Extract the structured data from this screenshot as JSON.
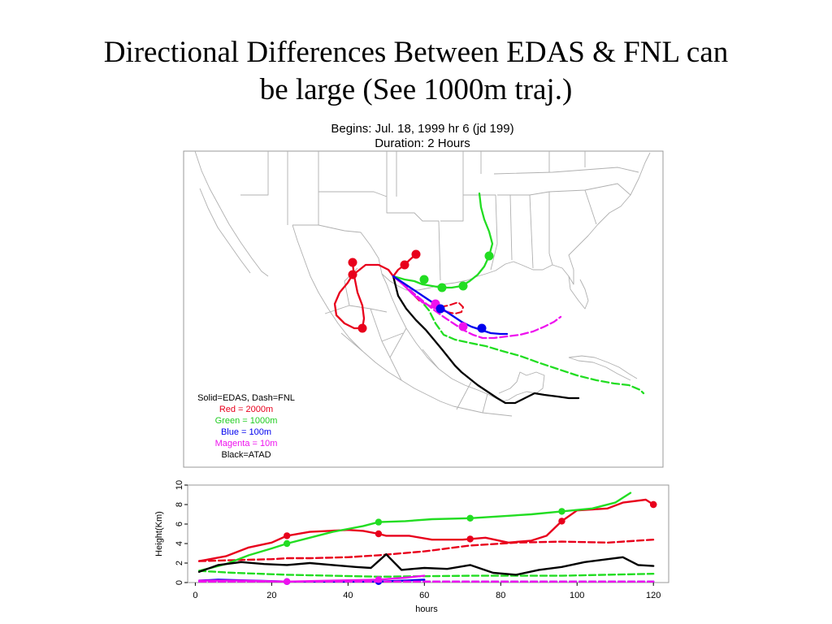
{
  "slide": {
    "title_line1": "Directional Differences Between EDAS & FNL can",
    "title_line2": "be large (See 1000m traj.)",
    "run_begins": "Begins:  Jul. 18, 1999 hr 6 (jd 199)",
    "run_duration": "Duration:  2 Hours"
  },
  "legend": {
    "style_note": "Solid=EDAS, Dash=FNL",
    "items": [
      {
        "label": "Red = 2000m",
        "color": "#e8001c"
      },
      {
        "label": "Green = 1000m",
        "color": "#22dd22"
      },
      {
        "label": "Blue = 100m",
        "color": "#0000ee"
      },
      {
        "label": "Magenta = 10m",
        "color": "#ee11ee"
      },
      {
        "label": "Black=ATAD",
        "color": "#000000"
      }
    ]
  },
  "colors": {
    "red": "#e8001c",
    "green": "#22dd22",
    "blue": "#0000ee",
    "magenta": "#ee11ee",
    "black": "#000000",
    "map_boundaries": "#b0b0b0"
  },
  "chart_data": {
    "type": "line",
    "xlabel": "hours",
    "ylabel": "Height(Km)",
    "xlim": [
      -2,
      124
    ],
    "ylim": [
      0,
      10
    ],
    "xticks": [
      0,
      20,
      40,
      60,
      80,
      100,
      120
    ],
    "yticks": [
      0,
      2,
      4,
      6,
      8,
      10
    ],
    "marker_interval_hours": 24,
    "series": [
      {
        "color": "red",
        "style": "solid",
        "x": [
          1,
          8,
          14,
          20,
          24,
          30,
          35,
          40,
          44,
          48,
          50,
          56,
          62,
          70,
          76,
          82,
          88,
          92,
          96,
          100,
          108,
          112,
          118,
          120
        ],
        "y": [
          2.2,
          2.7,
          3.6,
          4.1,
          4.8,
          5.2,
          5.3,
          5.4,
          5.3,
          5.0,
          4.8,
          4.8,
          4.4,
          4.4,
          4.6,
          4.1,
          4.3,
          4.8,
          6.3,
          7.4,
          7.6,
          8.2,
          8.5,
          8.0
        ]
      },
      {
        "color": "red",
        "style": "dashed",
        "x": [
          1,
          10,
          20,
          24,
          30,
          40,
          48,
          60,
          72,
          84,
          96,
          108,
          120
        ],
        "y": [
          2.2,
          2.3,
          2.4,
          2.5,
          2.5,
          2.6,
          2.8,
          3.2,
          3.8,
          4.1,
          4.2,
          4.1,
          4.4
        ]
      },
      {
        "color": "green",
        "style": "solid",
        "x": [
          1,
          8,
          14,
          20,
          24,
          30,
          36,
          40,
          44,
          48,
          55,
          62,
          72,
          80,
          88,
          96,
          104,
          110,
          114
        ],
        "y": [
          1.2,
          1.9,
          2.8,
          3.5,
          4.0,
          4.6,
          5.2,
          5.5,
          5.8,
          6.2,
          6.3,
          6.5,
          6.6,
          6.8,
          7.0,
          7.3,
          7.6,
          8.2,
          9.2
        ]
      },
      {
        "color": "green",
        "style": "dashed",
        "x": [
          1,
          10,
          24,
          48,
          72,
          96,
          120
        ],
        "y": [
          1.2,
          1.0,
          0.8,
          0.6,
          0.7,
          0.7,
          0.9
        ]
      },
      {
        "color": "blue",
        "style": "solid",
        "x": [
          1,
          6,
          15,
          24,
          35,
          48,
          55,
          60
        ],
        "y": [
          0.2,
          0.3,
          0.2,
          0.1,
          0.1,
          0.1,
          0.2,
          0.3
        ]
      },
      {
        "color": "blue",
        "style": "dashed",
        "x": [
          1,
          24,
          48,
          72,
          96,
          120
        ],
        "y": [
          0.1,
          0.1,
          0.1,
          0.1,
          0.1,
          0.1
        ]
      },
      {
        "color": "magenta",
        "style": "solid",
        "x": [
          1,
          12,
          24,
          36,
          48,
          55,
          60
        ],
        "y": [
          0.2,
          0.2,
          0.1,
          0.2,
          0.3,
          0.5,
          0.7
        ]
      },
      {
        "color": "magenta",
        "style": "dashed",
        "x": [
          1,
          24,
          48,
          72,
          96,
          120
        ],
        "y": [
          0.1,
          0.1,
          0.1,
          0.1,
          0.1,
          0.1
        ]
      },
      {
        "color": "black",
        "style": "solid",
        "x": [
          1,
          6,
          12,
          18,
          24,
          30,
          36,
          42,
          46,
          50,
          54,
          60,
          66,
          72,
          78,
          84,
          90,
          96,
          102,
          108,
          112,
          116,
          120
        ],
        "y": [
          1.1,
          1.8,
          2.1,
          1.9,
          1.8,
          2.0,
          1.8,
          1.6,
          1.5,
          2.9,
          1.3,
          1.5,
          1.4,
          1.8,
          1.0,
          0.8,
          1.3,
          1.6,
          2.1,
          2.4,
          2.6,
          1.8,
          1.7
        ]
      }
    ]
  }
}
